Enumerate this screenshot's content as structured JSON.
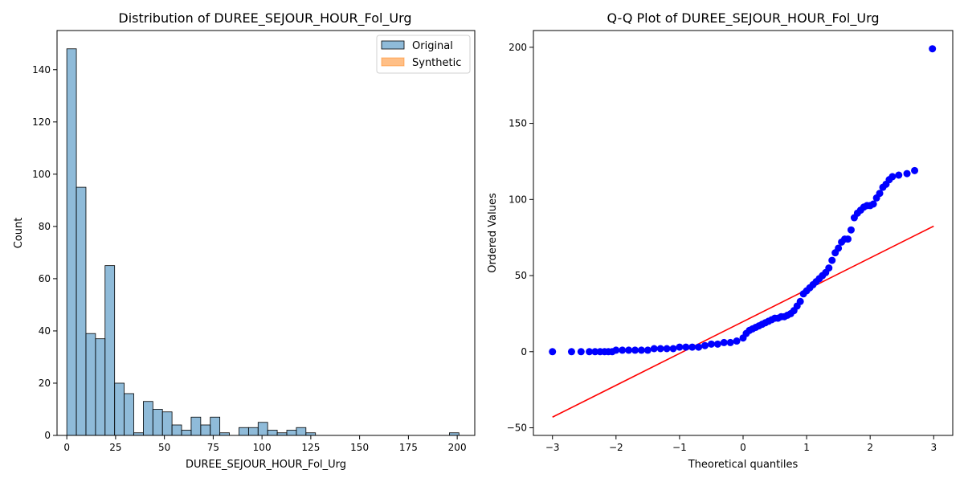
{
  "chart_data": [
    {
      "type": "bar",
      "title": "Distribution of DUREE_SEJOUR_HOUR_Fol_Urg",
      "xlabel": "DUREE_SEJOUR_HOUR_Fol_Urg",
      "ylabel": "Count",
      "xlim": [
        -5,
        209
      ],
      "ylim": [
        0,
        155
      ],
      "xticks": [
        0,
        25,
        50,
        75,
        100,
        125,
        150,
        175,
        200
      ],
      "yticks": [
        0,
        20,
        40,
        60,
        80,
        100,
        120,
        140
      ],
      "bin_width": 4.9,
      "legend_position": "top-right",
      "grid": false,
      "series": [
        {
          "name": "Original",
          "color": "#1f77b4",
          "bins_start": [
            0,
            4.9,
            9.8,
            14.7,
            19.6,
            24.5,
            29.4,
            34.3,
            39.2,
            44.1,
            49.0,
            53.9,
            58.8,
            63.7,
            68.6,
            73.5,
            78.4,
            83.3,
            88.2,
            93.1,
            98.0,
            102.9,
            107.8,
            112.7,
            117.6,
            122.5,
            127.4,
            132.3,
            137.2,
            142.1,
            147.0,
            151.9,
            156.8,
            161.7,
            166.6,
            171.5,
            176.4,
            181.3,
            186.2,
            191.1,
            196.0
          ],
          "counts": [
            148,
            95,
            39,
            37,
            65,
            20,
            16,
            1,
            13,
            10,
            9,
            4,
            2,
            7,
            4,
            7,
            1,
            0,
            3,
            3,
            5,
            2,
            1,
            2,
            3,
            1,
            0,
            0,
            0,
            0,
            0,
            0,
            0,
            0,
            0,
            0,
            0,
            0,
            0,
            0,
            1
          ]
        },
        {
          "name": "Synthetic",
          "color": "#ff7f0e",
          "bins_start": [],
          "counts": []
        }
      ]
    },
    {
      "type": "scatter",
      "title": "Q-Q Plot of DUREE_SEJOUR_HOUR_Fol_Urg",
      "xlabel": "Theoretical quantiles",
      "ylabel": "Ordered Values",
      "xlim": [
        -3.3,
        3.3
      ],
      "ylim": [
        -55,
        211
      ],
      "xticks": [
        -3,
        -2,
        -1,
        0,
        1,
        2,
        3
      ],
      "yticks": [
        -50,
        0,
        50,
        100,
        150,
        200
      ],
      "grid": false,
      "points_color": "#0000ff",
      "line_color": "#ff0000",
      "fit_line": {
        "x": [
          -3.0,
          3.0
        ],
        "y": [
          -43,
          82.5
        ]
      },
      "points": {
        "x": [
          -3.0,
          -2.7,
          -2.55,
          -2.42,
          -2.33,
          -2.25,
          -2.18,
          -2.12,
          -2.06,
          -2.0,
          -1.9,
          -1.8,
          -1.7,
          -1.6,
          -1.5,
          -1.4,
          -1.3,
          -1.2,
          -1.1,
          -1.0,
          -0.9,
          -0.8,
          -0.7,
          -0.6,
          -0.5,
          -0.4,
          -0.3,
          -0.2,
          -0.1,
          0.0,
          0.05,
          0.1,
          0.15,
          0.2,
          0.25,
          0.3,
          0.35,
          0.4,
          0.45,
          0.5,
          0.55,
          0.6,
          0.65,
          0.7,
          0.75,
          0.8,
          0.85,
          0.9,
          0.95,
          1.0,
          1.05,
          1.1,
          1.15,
          1.2,
          1.25,
          1.3,
          1.35,
          1.4,
          1.45,
          1.5,
          1.55,
          1.6,
          1.65,
          1.7,
          1.75,
          1.8,
          1.85,
          1.9,
          1.95,
          2.0,
          2.05,
          2.1,
          2.15,
          2.2,
          2.25,
          2.3,
          2.35,
          2.45,
          2.58,
          2.7,
          2.98
        ],
        "y": [
          0,
          0,
          0,
          0,
          0,
          0,
          0,
          0,
          0,
          1,
          1,
          1,
          1,
          1,
          1,
          2,
          2,
          2,
          2,
          3,
          3,
          3,
          3,
          4,
          5,
          5,
          6,
          6,
          7,
          9,
          12,
          14,
          15,
          16,
          17,
          18,
          19,
          20,
          21,
          22,
          22,
          23,
          23,
          24,
          25,
          27,
          30,
          33,
          38,
          40,
          42,
          44,
          46,
          48,
          50,
          52,
          55,
          60,
          65,
          68,
          72,
          74,
          74,
          80,
          88,
          91,
          93,
          95,
          96,
          96,
          97,
          101,
          104,
          108,
          110,
          113,
          115,
          116,
          117,
          119,
          199
        ]
      }
    }
  ]
}
